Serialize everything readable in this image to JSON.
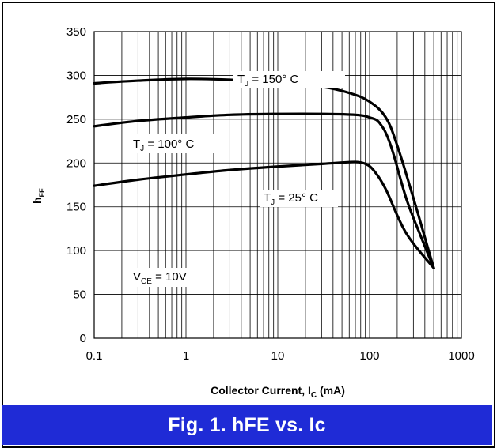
{
  "figure": {
    "caption": "Fig. 1.  hFE vs. Ic",
    "banner_color": "#1f2bd6"
  },
  "chart_data": {
    "type": "line",
    "x_scale": "log",
    "xlim": [
      0.1,
      1000
    ],
    "ylim": [
      0,
      350
    ],
    "x_ticks": [
      0.1,
      1,
      10,
      100,
      1000
    ],
    "x_tick_labels": [
      "0.1",
      "1",
      "10",
      "100",
      "1000"
    ],
    "y_ticks": [
      0,
      50,
      100,
      150,
      200,
      250,
      300,
      350
    ],
    "y_tick_labels": [
      "0",
      "50",
      "100",
      "150",
      "200",
      "250",
      "300",
      "350"
    ],
    "grid": true,
    "xlabel": {
      "main": "Collector Current, I",
      "sub": "C",
      "suffix": " (mA)"
    },
    "ylabel": {
      "main": "h",
      "sub": "FE",
      "suffix": ""
    },
    "annotations": [
      {
        "id": "vce",
        "main": "V",
        "sub": "CE",
        "suffix": " = 10V"
      }
    ],
    "series": [
      {
        "id": "t150",
        "label": {
          "main": "T",
          "sub": "J",
          "suffix": " = 150° C"
        },
        "color": "#000000",
        "points": [
          [
            0.1,
            291
          ],
          [
            0.3,
            294
          ],
          [
            1,
            296
          ],
          [
            3,
            295
          ],
          [
            10,
            292
          ],
          [
            30,
            287
          ],
          [
            60,
            280
          ],
          [
            100,
            270
          ],
          [
            150,
            252
          ],
          [
            200,
            220
          ],
          [
            300,
            160
          ],
          [
            400,
            115
          ],
          [
            500,
            80
          ]
        ]
      },
      {
        "id": "t100",
        "label": {
          "main": "T",
          "sub": "J",
          "suffix": " = 100° C"
        },
        "color": "#000000",
        "points": [
          [
            0.1,
            242
          ],
          [
            0.3,
            248
          ],
          [
            1,
            252
          ],
          [
            3,
            255
          ],
          [
            10,
            256
          ],
          [
            30,
            256
          ],
          [
            70,
            255
          ],
          [
            100,
            252
          ],
          [
            130,
            245
          ],
          [
            170,
            220
          ],
          [
            250,
            160
          ],
          [
            350,
            120
          ],
          [
            500,
            80
          ]
        ]
      },
      {
        "id": "t25",
        "label": {
          "main": "T",
          "sub": "J",
          "suffix": " = 25° C"
        },
        "color": "#000000",
        "points": [
          [
            0.1,
            174
          ],
          [
            0.3,
            181
          ],
          [
            1,
            187
          ],
          [
            3,
            192
          ],
          [
            10,
            196
          ],
          [
            30,
            199
          ],
          [
            60,
            201
          ],
          [
            75,
            201
          ],
          [
            90,
            199
          ],
          [
            110,
            192
          ],
          [
            150,
            170
          ],
          [
            250,
            120
          ],
          [
            500,
            80
          ]
        ]
      }
    ]
  }
}
